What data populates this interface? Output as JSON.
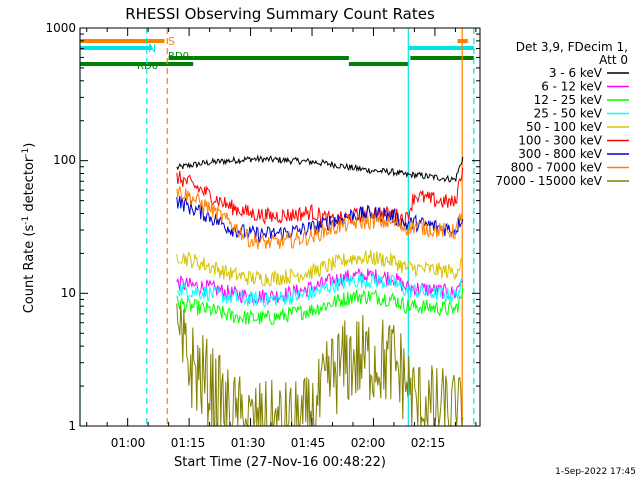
{
  "chart_data": {
    "type": "line",
    "title": "RHESSI Observing Summary Count Rates",
    "xlabel": "Start Time (27-Nov-16 00:48:22)",
    "ylabel": "Count Rate (s⁻¹ detector⁻¹)",
    "ylabel_parts": [
      "Count Rate (s",
      "-1",
      " detector",
      "-1",
      ")"
    ],
    "y_scale": "log",
    "ylim": [
      1,
      1000
    ],
    "xlim": [
      "00:48:22",
      "02:26:00"
    ],
    "x_tick_labels": [
      "01:00",
      "01:15",
      "01:30",
      "01:45",
      "02:00",
      "02:15"
    ],
    "y_tick_labels": [
      "1",
      "10",
      "100",
      "1000"
    ],
    "grid": false,
    "legend_placement": "right",
    "legend_header": [
      "Det 3,9, FDecim 1,",
      "Att 0"
    ],
    "timestamp": "1-Sep-2022 17:45",
    "flag_labels": {
      "S": "S",
      "N": "N",
      "RD0": "RD0",
      "RD6": "RD6"
    },
    "flags": [
      {
        "label": "S",
        "color": "#ff8000",
        "intervals": [
          [
            "00:48:22",
            "01:09:00"
          ],
          [
            "02:20:30",
            "02:23:00"
          ]
        ]
      },
      {
        "label": "N",
        "color": "#00e5e5",
        "intervals": [
          [
            "00:48:22",
            "01:06:00"
          ],
          [
            "02:08:30",
            "02:24:30"
          ]
        ]
      },
      {
        "label": "RD0",
        "color": "#008000",
        "intervals": [
          [
            "01:10:00",
            "01:16:00"
          ],
          [
            "01:16:00",
            "01:54:00"
          ],
          [
            "02:09:00",
            "02:24:30"
          ]
        ]
      },
      {
        "label": "RD6",
        "color": "#008000",
        "intervals": [
          [
            "00:48:22",
            "01:16:00"
          ],
          [
            "01:54:00",
            "02:08:30"
          ]
        ]
      }
    ],
    "vertical_lines": [
      {
        "time": "00:48:22",
        "color": "#00e5e5",
        "style": "solid"
      },
      {
        "time": "01:04:40",
        "color": "#00e5e5",
        "style": "dashed"
      },
      {
        "time": "01:09:40",
        "color": "#ff8000",
        "style": "dashed"
      },
      {
        "time": "02:08:30",
        "color": "#00e5e5",
        "style": "solid"
      },
      {
        "time": "02:21:40",
        "color": "#ff8000",
        "style": "solid"
      },
      {
        "time": "02:24:30",
        "color": "#00e5e5",
        "style": "dashed"
      }
    ],
    "x": [
      "01:12",
      "01:15",
      "01:20",
      "01:25",
      "01:30",
      "01:35",
      "01:40",
      "01:45",
      "01:50",
      "01:55",
      "02:00",
      "02:05",
      "02:08",
      "02:10",
      "02:15",
      "02:20",
      "02:22"
    ],
    "series": [
      {
        "name": "3 - 6 keV",
        "color": "#000000",
        "values": [
          88,
          92,
          97,
          100,
          103,
          102,
          100,
          98,
          94,
          88,
          84,
          82,
          78,
          78,
          75,
          72,
          110
        ]
      },
      {
        "name": "6 - 12 keV",
        "color": "#ff00ff",
        "values": [
          12,
          11.5,
          11,
          10,
          9.5,
          9.5,
          10,
          11,
          12.5,
          13.5,
          13.5,
          13,
          11,
          11,
          10.5,
          10,
          14
        ]
      },
      {
        "name": "12 - 25 keV",
        "color": "#00ff00",
        "values": [
          8.5,
          8,
          7.5,
          6.8,
          6.5,
          6.5,
          7,
          7.5,
          8.5,
          9.5,
          9.5,
          9,
          8,
          8,
          7.8,
          7.5,
          10
        ]
      },
      {
        "name": "25 - 50 keV",
        "color": "#00ffff",
        "values": [
          11,
          10.5,
          10,
          9.3,
          9,
          9,
          9.4,
          10,
          11.5,
          12.5,
          12.5,
          12,
          10.5,
          10.5,
          10,
          9.6,
          12
        ]
      },
      {
        "name": "50 - 100 keV",
        "color": "#d4c400",
        "values": [
          19.5,
          18,
          16,
          14,
          13,
          13,
          13.5,
          14.5,
          16.5,
          18.5,
          18.5,
          17.5,
          15.5,
          15.5,
          15,
          14.5,
          18
        ]
      },
      {
        "name": "100 - 300 keV",
        "color": "#ff0000",
        "values": [
          75,
          68,
          55,
          45,
          40,
          38,
          39,
          41,
          35,
          38,
          41,
          39,
          36,
          55,
          50,
          48,
          100
        ]
      },
      {
        "name": "300 - 800 keV",
        "color": "#0000cc",
        "values": [
          50,
          45,
          38,
          31,
          28,
          28,
          29,
          31,
          35,
          39,
          40,
          38,
          33,
          34,
          32,
          30,
          40
        ]
      },
      {
        "name": "800 - 7000 keV",
        "color": "#ff8000",
        "values": [
          60,
          54,
          44,
          34,
          25,
          24,
          25,
          27,
          31,
          34,
          35,
          34,
          31,
          32,
          30,
          29,
          45
        ]
      },
      {
        "name": "7000 - 15000 keV",
        "color": "#808000",
        "values": [
          4.5,
          3,
          2,
          1.2,
          1,
          1,
          1,
          1.1,
          2.5,
          3.2,
          3.2,
          3,
          2.2,
          1.5,
          1.3,
          1.2,
          1
        ]
      }
    ]
  }
}
